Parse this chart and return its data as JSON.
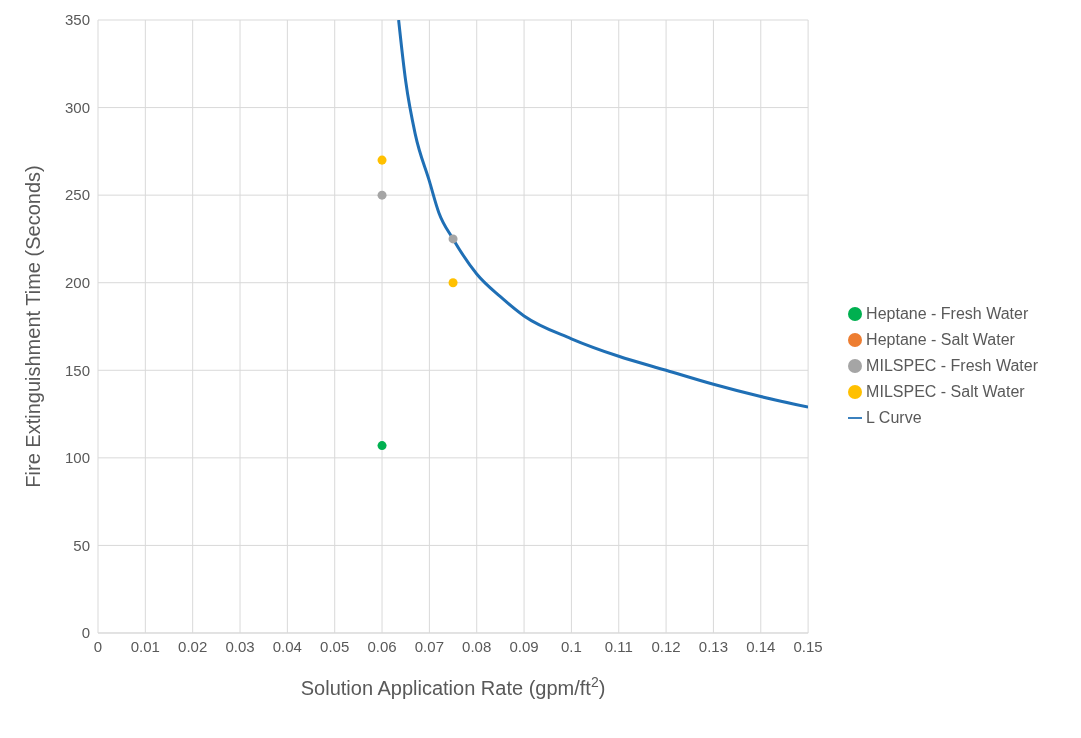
{
  "chart_data": {
    "type": "scatter",
    "xlabel": "Solution Application Rate (gpm/ft$^{2}$)",
    "ylabel": "Fire Extinguishment Time (Seconds)",
    "xlim": [
      0,
      0.15
    ],
    "xticks": [
      0,
      0.01,
      0.02,
      0.03,
      0.04,
      0.05,
      0.06,
      0.07,
      0.08,
      0.09,
      0.1,
      0.11,
      0.12,
      0.13,
      0.14,
      0.15
    ],
    "ylim": [
      0,
      350
    ],
    "yticks": [
      0,
      50,
      100,
      150,
      200,
      250,
      300,
      350
    ],
    "grid": true,
    "legend": "right",
    "marker": "circle",
    "series": [
      {
        "name": "Heptane - Fresh Water",
        "color": "#00b050",
        "x": [
          0.06
        ],
        "values": [
          107
        ]
      },
      {
        "name": "Heptane - Salt Water",
        "color": "#ed7d31"
      },
      {
        "name": "MILSPEC - Fresh Water",
        "color": "#a5a5a5",
        "x": [
          0.06,
          0.075
        ],
        "values": [
          250,
          225
        ]
      },
      {
        "name": "MILSPEC - Salt Water",
        "color": "#ffc000",
        "x": [
          0.06,
          0.075
        ],
        "values": [
          270,
          200
        ]
      },
      {
        "name": "L Curve",
        "type": "line",
        "color": "#1f6fb5",
        "marker": "none",
        "line_style": "solid",
        "x": [
          0.0635,
          0.065,
          0.067,
          0.07,
          0.072,
          0.075,
          0.08,
          0.085,
          0.09,
          0.1,
          0.11,
          0.12,
          0.13,
          0.14,
          0.15
        ],
        "values": [
          350,
          315,
          285,
          258,
          240,
          225,
          205,
          192,
          181,
          168,
          158,
          150,
          142,
          135,
          129
        ]
      }
    ]
  }
}
